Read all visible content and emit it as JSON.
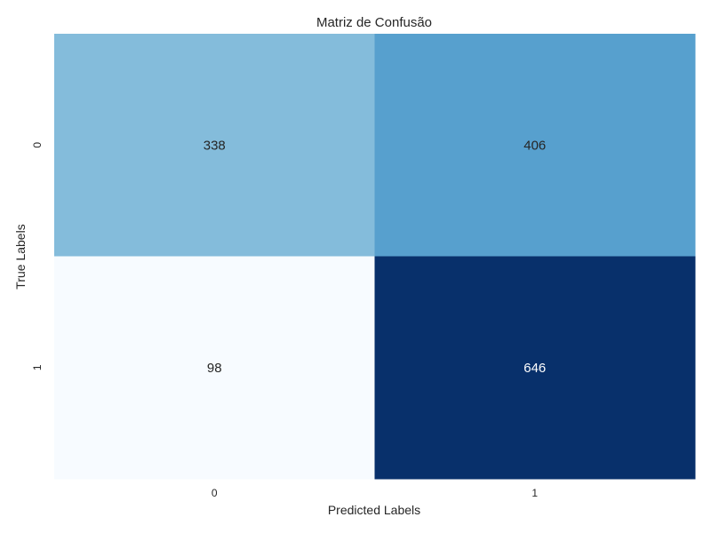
{
  "chart_data": {
    "type": "heatmap",
    "title": "Matriz de Confusão",
    "xlabel": "Predicted Labels",
    "ylabel": "True Labels",
    "x_categories": [
      "0",
      "1"
    ],
    "y_categories": [
      "0",
      "1"
    ],
    "values": [
      [
        338,
        406
      ],
      [
        98,
        646
      ]
    ],
    "colormap": "Blues",
    "color_range": [
      98,
      646
    ],
    "colorbar": false,
    "grid": false
  }
}
